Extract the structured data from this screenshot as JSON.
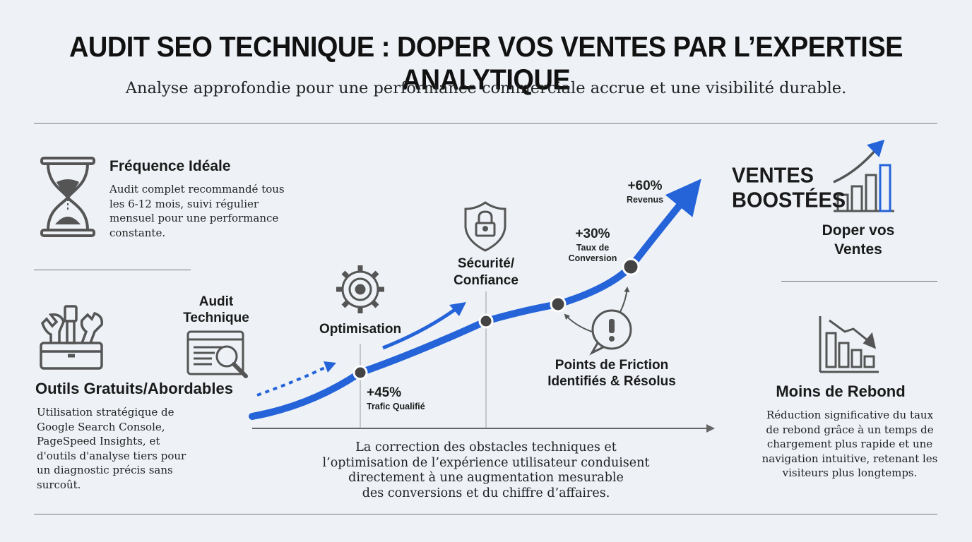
{
  "header": {
    "title": "AUDIT SEO TECHNIQUE : DOPER VOS VENTES PAR L’EXPERTISE ANALYTIQUE",
    "subtitle": "Analyse approfondie pour une performance commerciale accrue et une visibilité durable."
  },
  "frequence": {
    "title": "Fréquence Idéale",
    "lines": [
      "Audit complet recommandé tous",
      "les 6-12 mois, suivi régulier",
      "mensuel pour une performance",
      "constante."
    ],
    "icon": "hourglass-icon"
  },
  "outils": {
    "title": "Outils Gratuits/Abordables",
    "lines": [
      "Utilisation stratégique de",
      "Google Search Console,",
      "PageSpeed Insights, et",
      "d'outils d'analyse tiers pour",
      "un diagnostic précis sans",
      "surcoût."
    ],
    "icon": "toolbox-icon"
  },
  "audit": {
    "lines": [
      "Audit",
      "Technique"
    ],
    "icon": "browser-magnifier-icon"
  },
  "optimisation": {
    "label": "Optimisation",
    "icon": "gear-icon"
  },
  "securite": {
    "lines": [
      "Sécurité/",
      "Confiance"
    ],
    "icon": "shield-lock-icon"
  },
  "milestones": {
    "trafic": {
      "value": "+45%",
      "label": "Trafic Qualifié"
    },
    "conversion": {
      "value": "+30%",
      "label_lines": [
        "Taux de",
        "Conversion"
      ]
    },
    "revenus": {
      "value": "+60%",
      "label": "Revenus"
    }
  },
  "friction": {
    "lines": [
      "Points de Friction",
      "Identifiés & Résolus"
    ],
    "icon": "exclamation-bubble-icon"
  },
  "ventes": {
    "headline_lines": [
      "VENTES",
      "BOOSTÉES"
    ],
    "label_lines": [
      "Doper vos",
      "Ventes"
    ],
    "icon": "rising-bar-chart-icon"
  },
  "rebond": {
    "title": "Moins de Rebond",
    "lines": [
      "Réduction significative du taux",
      "de rebond grâce à un temps de",
      "chargement plus rapide et une",
      "navigation intuitive, retenant les",
      "visiteurs plus longtemps."
    ],
    "icon": "falling-bar-chart-icon"
  },
  "conclusion": {
    "lines": [
      "La correction des obstacles techniques et",
      "l’optimisation de l’expérience utilisateur conduisent",
      "directement à une augmentation mesurable",
      "des conversions et du chiffre d’affaires."
    ]
  },
  "colors": {
    "accent_blue": "#2563d9",
    "icon_gray": "#555555",
    "node_gray": "#444444",
    "background": "#eef2f7"
  }
}
